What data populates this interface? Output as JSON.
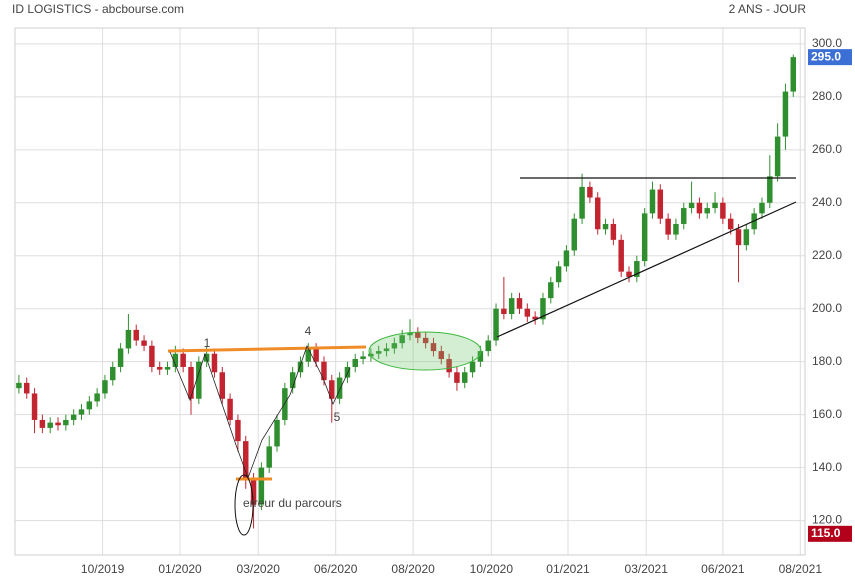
{
  "chart_data": {
    "type": "candlestick",
    "title": "ID LOGISTICS - abcbourse.com",
    "subtitle": "2 ANS - JOUR",
    "up_color": "#2f8f2f",
    "down_color": "#c22530",
    "grid": true,
    "xlim": [
      -0.5,
      100.5
    ],
    "xticks": [
      {
        "value": 10.7,
        "label": "10/2019"
      },
      {
        "value": 20.6,
        "label": "01/2020"
      },
      {
        "value": 30.6,
        "label": "03/2020"
      },
      {
        "value": 40.5,
        "label": "06/2020"
      },
      {
        "value": 50.4,
        "label": "08/2020"
      },
      {
        "value": 60.4,
        "label": "10/2020"
      },
      {
        "value": 70.2,
        "label": "01/2021"
      },
      {
        "value": 80.2,
        "label": "03/2021"
      },
      {
        "value": 90.0,
        "label": "06/2021"
      },
      {
        "value": 99.9,
        "label": "08/2021"
      }
    ],
    "ylim": [
      107,
      306
    ],
    "yticks": [
      {
        "value": 120,
        "label": "120.0"
      },
      {
        "value": 140,
        "label": "140.0"
      },
      {
        "value": 160,
        "label": "160.0"
      },
      {
        "value": 180,
        "label": "180.0"
      },
      {
        "value": 200,
        "label": "200.0"
      },
      {
        "value": 220,
        "label": "220.0"
      },
      {
        "value": 240,
        "label": "240.0"
      },
      {
        "value": 260,
        "label": "260.0"
      },
      {
        "value": 280,
        "label": "280.0"
      },
      {
        "value": 300,
        "label": "300.0"
      }
    ],
    "last_price": {
      "value": 295,
      "label": "295.0",
      "color": "#3b6fd6"
    },
    "min_price": {
      "value": 115,
      "label": "115.0",
      "color": "#b3001b"
    },
    "open": [
      170,
      172,
      168,
      158,
      155,
      157,
      156,
      158,
      160,
      162,
      165,
      168,
      173,
      178,
      185,
      192,
      188,
      186,
      178,
      177,
      178,
      183,
      178,
      166,
      180,
      183,
      176,
      166,
      158,
      150,
      136,
      126,
      140,
      148,
      158,
      170,
      176,
      180,
      185,
      180,
      173,
      166,
      174,
      178,
      181,
      182,
      183,
      184,
      185,
      187,
      190,
      191,
      189,
      187,
      184,
      181,
      176,
      172,
      176,
      180,
      184,
      188,
      200,
      198,
      204,
      200,
      197,
      196,
      204,
      210,
      216,
      222,
      234,
      246,
      242,
      230,
      232,
      226,
      214,
      212,
      218,
      236,
      245,
      234,
      228,
      232,
      238,
      240,
      236,
      238,
      240,
      234,
      230,
      224,
      230,
      236,
      240,
      250,
      265,
      282
    ],
    "high": [
      175,
      174,
      170,
      160,
      159,
      159,
      160,
      162,
      164,
      167,
      170,
      175,
      180,
      187,
      198,
      194,
      190,
      188,
      180,
      180,
      186,
      185,
      180,
      182,
      186,
      185,
      178,
      168,
      160,
      152,
      138,
      142,
      152,
      160,
      172,
      178,
      182,
      187,
      187,
      182,
      175,
      176,
      180,
      183,
      184,
      185,
      186,
      187,
      189,
      192,
      196,
      193,
      191,
      189,
      186,
      183,
      178,
      178,
      182,
      186,
      190,
      202,
      212,
      206,
      206,
      202,
      199,
      206,
      212,
      218,
      224,
      236,
      251,
      248,
      244,
      234,
      234,
      228,
      216,
      220,
      238,
      248,
      247,
      236,
      234,
      240,
      248,
      242,
      240,
      244,
      242,
      236,
      232,
      232,
      238,
      242,
      258,
      270,
      285,
      296
    ],
    "low": [
      168,
      166,
      153,
      153,
      153,
      154,
      154,
      156,
      158,
      160,
      163,
      166,
      171,
      176,
      183,
      186,
      184,
      176,
      175,
      175,
      176,
      176,
      160,
      164,
      178,
      174,
      164,
      156,
      146,
      132,
      117,
      124,
      138,
      146,
      156,
      168,
      174,
      178,
      178,
      171,
      157,
      164,
      172,
      176,
      179,
      180,
      181,
      182,
      183,
      185,
      188,
      187,
      185,
      182,
      179,
      174,
      169,
      170,
      174,
      178,
      182,
      186,
      196,
      196,
      198,
      195,
      194,
      194,
      202,
      208,
      214,
      220,
      232,
      240,
      228,
      228,
      224,
      212,
      210,
      210,
      216,
      234,
      232,
      226,
      226,
      230,
      236,
      234,
      234,
      236,
      232,
      228,
      210,
      222,
      228,
      234,
      238,
      248,
      260,
      280
    ],
    "close": [
      172,
      168,
      158,
      155,
      157,
      156,
      158,
      160,
      162,
      165,
      168,
      173,
      178,
      185,
      192,
      188,
      186,
      178,
      177,
      178,
      183,
      178,
      166,
      180,
      183,
      176,
      166,
      158,
      150,
      136,
      126,
      140,
      148,
      158,
      170,
      176,
      180,
      185,
      180,
      173,
      166,
      174,
      178,
      181,
      182,
      183,
      184,
      185,
      187,
      190,
      191,
      189,
      187,
      184,
      181,
      176,
      172,
      176,
      180,
      184,
      188,
      200,
      198,
      204,
      200,
      197,
      196,
      204,
      210,
      216,
      222,
      234,
      246,
      242,
      230,
      232,
      226,
      214,
      212,
      218,
      236,
      245,
      234,
      228,
      232,
      238,
      240,
      236,
      238,
      240,
      234,
      230,
      224,
      230,
      236,
      240,
      250,
      265,
      282,
      295
    ],
    "annotations": [
      "1",
      "4",
      "5",
      "erreur du parcours"
    ]
  }
}
